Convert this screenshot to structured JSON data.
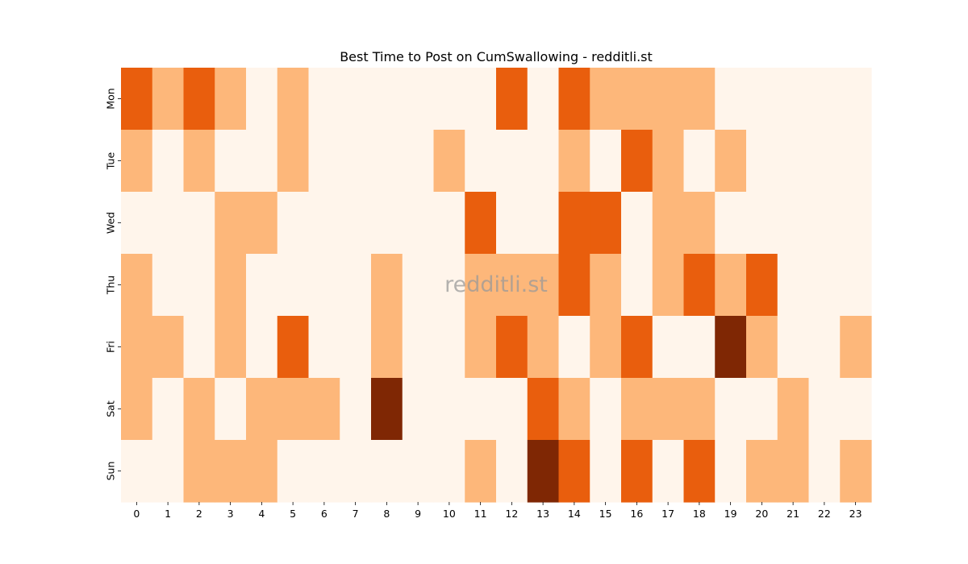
{
  "chart_data": {
    "type": "heatmap",
    "title": "Best Time to Post on CumSwallowing - redditli.st",
    "xlabel": "",
    "ylabel": "",
    "x": [
      "0",
      "1",
      "2",
      "3",
      "4",
      "5",
      "6",
      "7",
      "8",
      "9",
      "10",
      "11",
      "12",
      "13",
      "14",
      "15",
      "16",
      "17",
      "18",
      "19",
      "20",
      "21",
      "22",
      "23"
    ],
    "y": [
      "Mon",
      "Tue",
      "Wed",
      "Thu",
      "Fri",
      "Sat",
      "Sun"
    ],
    "levels": 4,
    "colors": [
      "#fff5eb",
      "#fdb77a",
      "#e95e0d",
      "#7f2704"
    ],
    "values": [
      [
        2,
        1,
        2,
        1,
        0,
        1,
        0,
        0,
        0,
        0,
        0,
        0,
        2,
        0,
        2,
        1,
        1,
        1,
        1,
        0,
        0,
        0,
        0,
        0
      ],
      [
        1,
        0,
        1,
        0,
        0,
        1,
        0,
        0,
        0,
        0,
        1,
        0,
        0,
        0,
        1,
        0,
        2,
        1,
        0,
        1,
        0,
        0,
        0,
        0
      ],
      [
        0,
        0,
        0,
        1,
        1,
        0,
        0,
        0,
        0,
        0,
        0,
        2,
        0,
        0,
        2,
        2,
        0,
        1,
        1,
        0,
        0,
        0,
        0,
        0
      ],
      [
        1,
        0,
        0,
        1,
        0,
        0,
        0,
        0,
        1,
        0,
        0,
        1,
        1,
        1,
        2,
        1,
        0,
        1,
        2,
        1,
        2,
        0,
        0,
        0
      ],
      [
        1,
        1,
        0,
        1,
        0,
        2,
        0,
        0,
        1,
        0,
        0,
        1,
        2,
        1,
        0,
        1,
        2,
        0,
        0,
        3,
        1,
        0,
        0,
        1
      ],
      [
        1,
        0,
        1,
        0,
        1,
        1,
        1,
        0,
        3,
        0,
        0,
        0,
        0,
        2,
        1,
        0,
        1,
        1,
        1,
        0,
        0,
        1,
        0,
        0
      ],
      [
        0,
        0,
        1,
        1,
        1,
        0,
        0,
        0,
        0,
        0,
        0,
        1,
        0,
        3,
        2,
        0,
        2,
        0,
        2,
        0,
        1,
        1,
        0,
        1
      ]
    ]
  },
  "watermark": "redditli.st"
}
